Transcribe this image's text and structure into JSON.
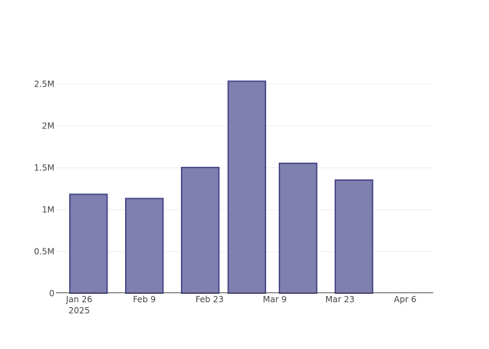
{
  "chart_data": {
    "type": "bar",
    "x_labels": [
      {
        "line1": "Jan 26",
        "line2": "2025"
      },
      {
        "line1": "Feb 9",
        "line2": ""
      },
      {
        "line1": "Feb 23",
        "line2": ""
      },
      {
        "line1": "Mar 9",
        "line2": ""
      },
      {
        "line1": "Mar 23",
        "line2": ""
      },
      {
        "line1": "Apr 6",
        "line2": ""
      }
    ],
    "bars": [
      {
        "start": "2025-01-24",
        "end": "2025-02-01",
        "value": 1180000
      },
      {
        "start": "2025-02-05",
        "end": "2025-02-13",
        "value": 1130000
      },
      {
        "start": "2025-02-17",
        "end": "2025-02-25",
        "value": 1500000
      },
      {
        "start": "2025-02-27",
        "end": "2025-03-07",
        "value": 2530000
      },
      {
        "start": "2025-03-10",
        "end": "2025-03-18",
        "value": 1550000
      },
      {
        "start": "2025-03-22",
        "end": "2025-03-30",
        "value": 1350000
      }
    ],
    "y_ticks": [
      {
        "value": 0,
        "label": "0"
      },
      {
        "value": 500000,
        "label": "0.5M"
      },
      {
        "value": 1000000,
        "label": "1M"
      },
      {
        "value": 1500000,
        "label": "1.5M"
      },
      {
        "value": 2000000,
        "label": "2M"
      },
      {
        "value": 2500000,
        "label": "2.5M"
      }
    ],
    "ylim": [
      0,
      2500000
    ],
    "grid": true,
    "colors": {
      "bar_fill": "#7f7fb0",
      "bar_stroke": "#4a4a8a"
    }
  }
}
